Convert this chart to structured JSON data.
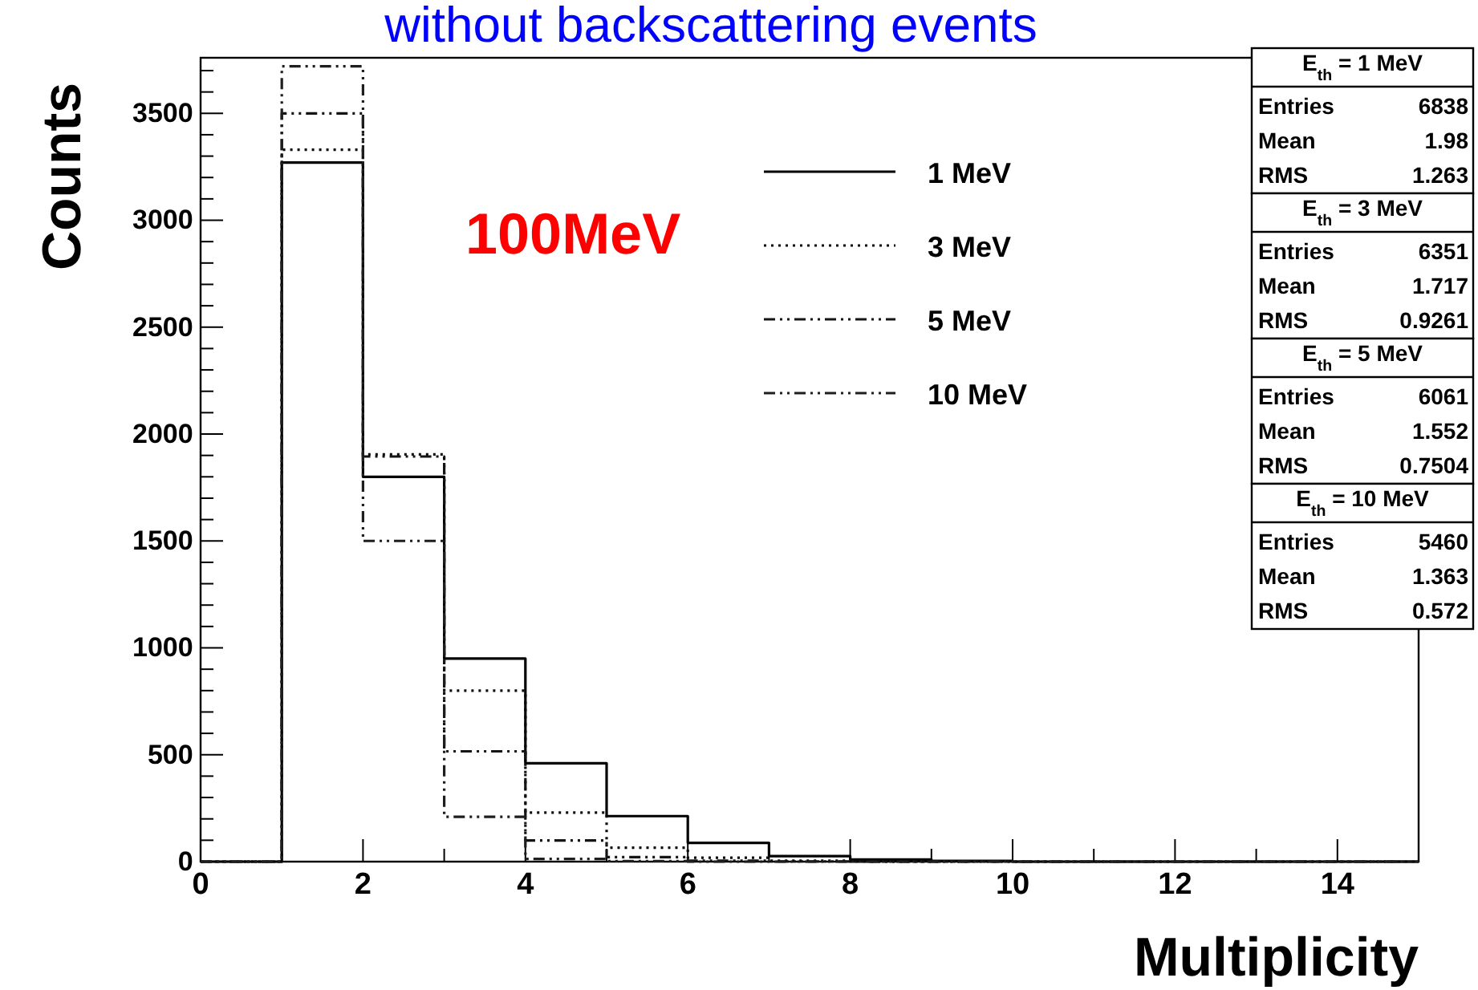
{
  "chart_data": {
    "type": "histogram",
    "title": "without backscattering events",
    "xlabel": "Multiplicity",
    "ylabel": "Counts",
    "bins": [
      0,
      1,
      2,
      3,
      4,
      5,
      6,
      7,
      8,
      9,
      10,
      11,
      12,
      13,
      14,
      15
    ],
    "series": [
      {
        "name": "1 MeV",
        "color": "#000000",
        "line_style": "solid",
        "values": [
          0,
          3270,
          1800,
          950,
          460,
          213,
          88,
          26,
          10,
          3,
          0,
          0,
          0,
          0,
          0
        ]
      },
      {
        "name": "3 MeV",
        "color": "#0a0a0a",
        "line_style": "dotted",
        "values": [
          0,
          3330,
          1905,
          800,
          229,
          65,
          18,
          4,
          0,
          0,
          0,
          0,
          0,
          0,
          0
        ]
      },
      {
        "name": "5 MeV",
        "color": "#141414",
        "line_style": "dashed",
        "values": [
          0,
          3500,
          1895,
          516,
          99,
          21,
          4,
          1,
          0,
          0,
          0,
          0,
          0,
          0,
          0
        ]
      },
      {
        "name": "10 MeV",
        "color": "#1e1e1e",
        "line_style": "dashed",
        "values": [
          0,
          3720,
          1500,
          210,
          13,
          2,
          0,
          0,
          0,
          0,
          0,
          0,
          0,
          0,
          0
        ]
      }
    ],
    "xlim": [
      0,
      15
    ],
    "ylim": [
      0,
      3760
    ],
    "xticks": [
      0,
      {
        "value": 1,
        "label": null
      },
      2,
      {
        "value": 3,
        "label": null
      },
      4,
      {
        "value": 5,
        "label": null
      },
      6,
      {
        "value": 7,
        "label": null
      },
      8,
      {
        "value": 9,
        "label": null
      },
      10,
      {
        "value": 11,
        "label": null
      },
      12,
      {
        "value": 13,
        "label": null
      },
      14,
      {
        "value": 15,
        "label": null
      }
    ],
    "yticks": [
      0,
      {
        "value": 100,
        "label": null
      },
      {
        "value": 200,
        "label": null
      },
      {
        "value": 300,
        "label": null
      },
      {
        "value": 400,
        "label": null
      },
      500,
      {
        "value": 600,
        "label": null
      },
      {
        "value": 700,
        "label": null
      },
      {
        "value": 800,
        "label": null
      },
      {
        "value": 900,
        "label": null
      },
      1000,
      {
        "value": 1100,
        "label": null
      },
      {
        "value": 1200,
        "label": null
      },
      {
        "value": 1300,
        "label": null
      },
      {
        "value": 1400,
        "label": null
      },
      1500,
      {
        "value": 1600,
        "label": null
      },
      {
        "value": 1700,
        "label": null
      },
      {
        "value": 1800,
        "label": null
      },
      {
        "value": 1900,
        "label": null
      },
      2000,
      {
        "value": 2100,
        "label": null
      },
      {
        "value": 2200,
        "label": null
      },
      {
        "value": 2300,
        "label": null
      },
      {
        "value": 2400,
        "label": null
      },
      2500,
      {
        "value": 2600,
        "label": null
      },
      {
        "value": 2700,
        "label": null
      },
      {
        "value": 2800,
        "label": null
      },
      {
        "value": 2900,
        "label": null
      },
      3000,
      {
        "value": 3100,
        "label": null
      },
      {
        "value": 3200,
        "label": null
      },
      {
        "value": 3300,
        "label": null
      },
      {
        "value": 3400,
        "label": null
      },
      3500,
      {
        "value": 3600,
        "label": null
      },
      {
        "value": 3700,
        "label": null
      }
    ],
    "grid": false,
    "legend": "top right",
    "annotations": [
      "100MeV",
      "E$_{th}$ = 1 MeV",
      "Entries",
      "6838",
      "Mean",
      "1.98",
      "RMS",
      "1.263",
      "E$_{th}$ = 3 MeV",
      "Entries",
      "6351",
      "Mean",
      "1.717",
      "RMS",
      "0.9261",
      "E$_{th}$ = 5 MeV",
      "Entries",
      "6061",
      "Mean",
      "1.552",
      "RMS",
      "0.7504",
      "E$_{th}$ = 10 MeV",
      "Entries",
      "5460",
      "Mean",
      "1.363",
      "RMS",
      "0.572"
    ]
  }
}
